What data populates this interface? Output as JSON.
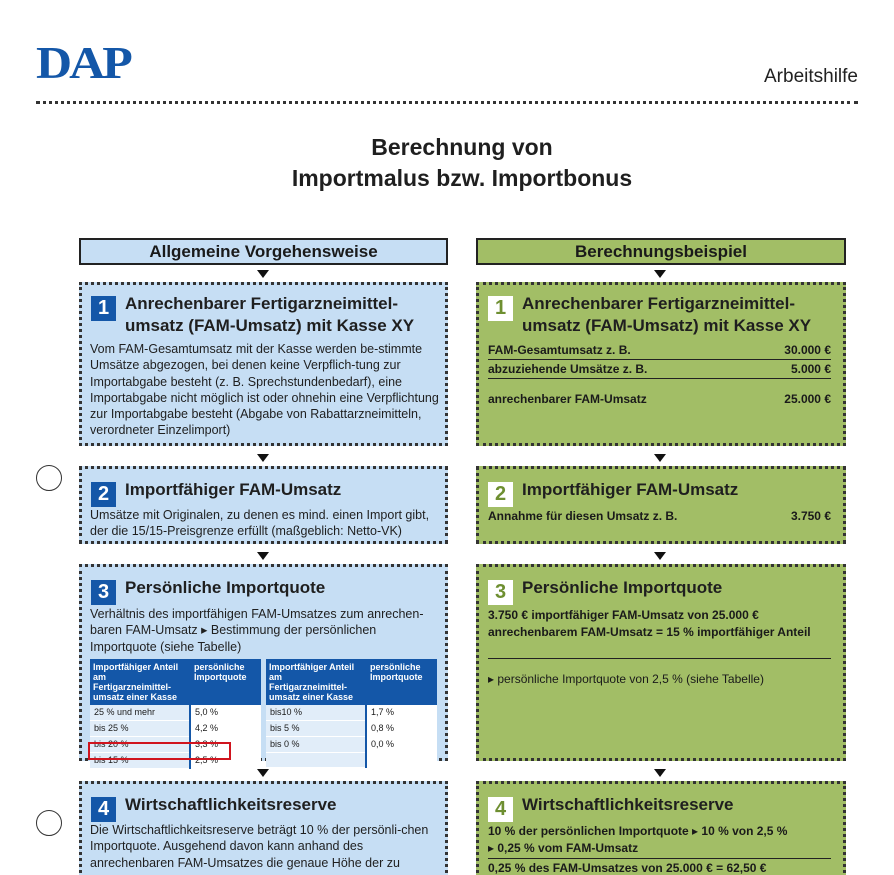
{
  "header": {
    "logo": "DAP",
    "doc_type": "Arbeitshilfe"
  },
  "title": {
    "line1": "Berechnung von",
    "line2": "Importmalus bzw. Importbonus"
  },
  "left_column": {
    "heading": "Allgemeine Vorgehensweise",
    "steps": [
      {
        "number": "1",
        "title": "Anrechenbarer Fertigarzneimittel-umsatz (FAM-Umsatz) mit Kasse XY",
        "text": "Vom FAM-Gesamtumsatz mit der Kasse werden be-stimmte Umsätze abgezogen, bei denen keine Verpflich-tung zur Importabgabe besteht (z. B. Sprechstundenbedarf), eine Importabgabe nicht möglich ist oder ohnehin eine Verpflichtung zur Importabgabe besteht (Abgabe von Rabattarzneimitteln, verordneter Einzelimport)"
      },
      {
        "number": "2",
        "title": "Importfähiger FAM-Umsatz",
        "text": "Umsätze mit Originalen, zu denen es mind. einen Import gibt, der die 15/15-Preisgrenze erfüllt (maßgeblich: Netto-VK)"
      },
      {
        "number": "3",
        "title": "Persönliche Importquote",
        "text": "Verhältnis des importfähigen FAM-Umsatzes zum anrechen-baren FAM-Umsatz ▸ Bestimmung der persönlichen Importquote (siehe Tabelle)"
      },
      {
        "number": "4",
        "title": "Wirtschaftlichkeitsreserve",
        "text": "Die Wirtschaftlichkeitsreserve beträgt 10 % der persönli-chen Importquote. Ausgehend davon kann anhand des anrechenbaren FAM-Umsatzes die genaue Höhe der zu"
      }
    ]
  },
  "quota_table": {
    "headers": {
      "share": "Importfähiger Anteil am Fertigarzneimittel-umsatz einer Kasse",
      "quota": "persönliche Importquote"
    },
    "left": [
      {
        "share": "25 % und mehr",
        "quota": "5,0 %"
      },
      {
        "share": "bis 25 %",
        "quota": "4,2 %"
      },
      {
        "share": "bis 20 %",
        "quota": "3,3 %"
      },
      {
        "share": "bis 15 %",
        "quota": "2,5 %"
      }
    ],
    "right": [
      {
        "share": "bis10 %",
        "quota": "1,7 %"
      },
      {
        "share": "bis 5 %",
        "quota": "0,8 %"
      },
      {
        "share": "bis 0 %",
        "quota": "0,0 %"
      },
      {
        "share": "",
        "quota": ""
      }
    ]
  },
  "right_column": {
    "heading": "Berechnungsbeispiel",
    "step1": {
      "number": "1",
      "title": "Anrechenbarer Fertigarzneimittel-umsatz (FAM-Umsatz) mit Kasse XY",
      "rows": [
        {
          "label": "FAM-Gesamtumsatz z. B.",
          "value": "30.000 €"
        },
        {
          "label": "abzuziehende Umsätze z. B.",
          "value": "5.000 €"
        },
        {
          "label": "anrechenbarer FAM-Umsatz",
          "value": "25.000 €"
        }
      ]
    },
    "step2": {
      "number": "2",
      "title": "Importfähiger FAM-Umsatz",
      "row": {
        "label": "Annahme für diesen Umsatz z. B.",
        "value": "3.750 €"
      }
    },
    "step3": {
      "number": "3",
      "title": "Persönliche Importquote",
      "text": "3.750 € importfähiger FAM-Umsatz von 25.000 € anrechenbarem FAM-Umsatz = 15 % importfähiger Anteil",
      "result": "▸ persönliche Importquote von 2,5 % (siehe Tabelle)"
    },
    "step4": {
      "number": "4",
      "title": "Wirtschaftlichkeitsreserve",
      "line1": "10 % der persönlichen Importquote ▸ 10 % von 2,5 %",
      "line2": "▸ 0,25 % vom FAM-Umsatz",
      "line3": "0,25 % des FAM-Umsatzes von 25.000 € = 62,50 €"
    }
  }
}
